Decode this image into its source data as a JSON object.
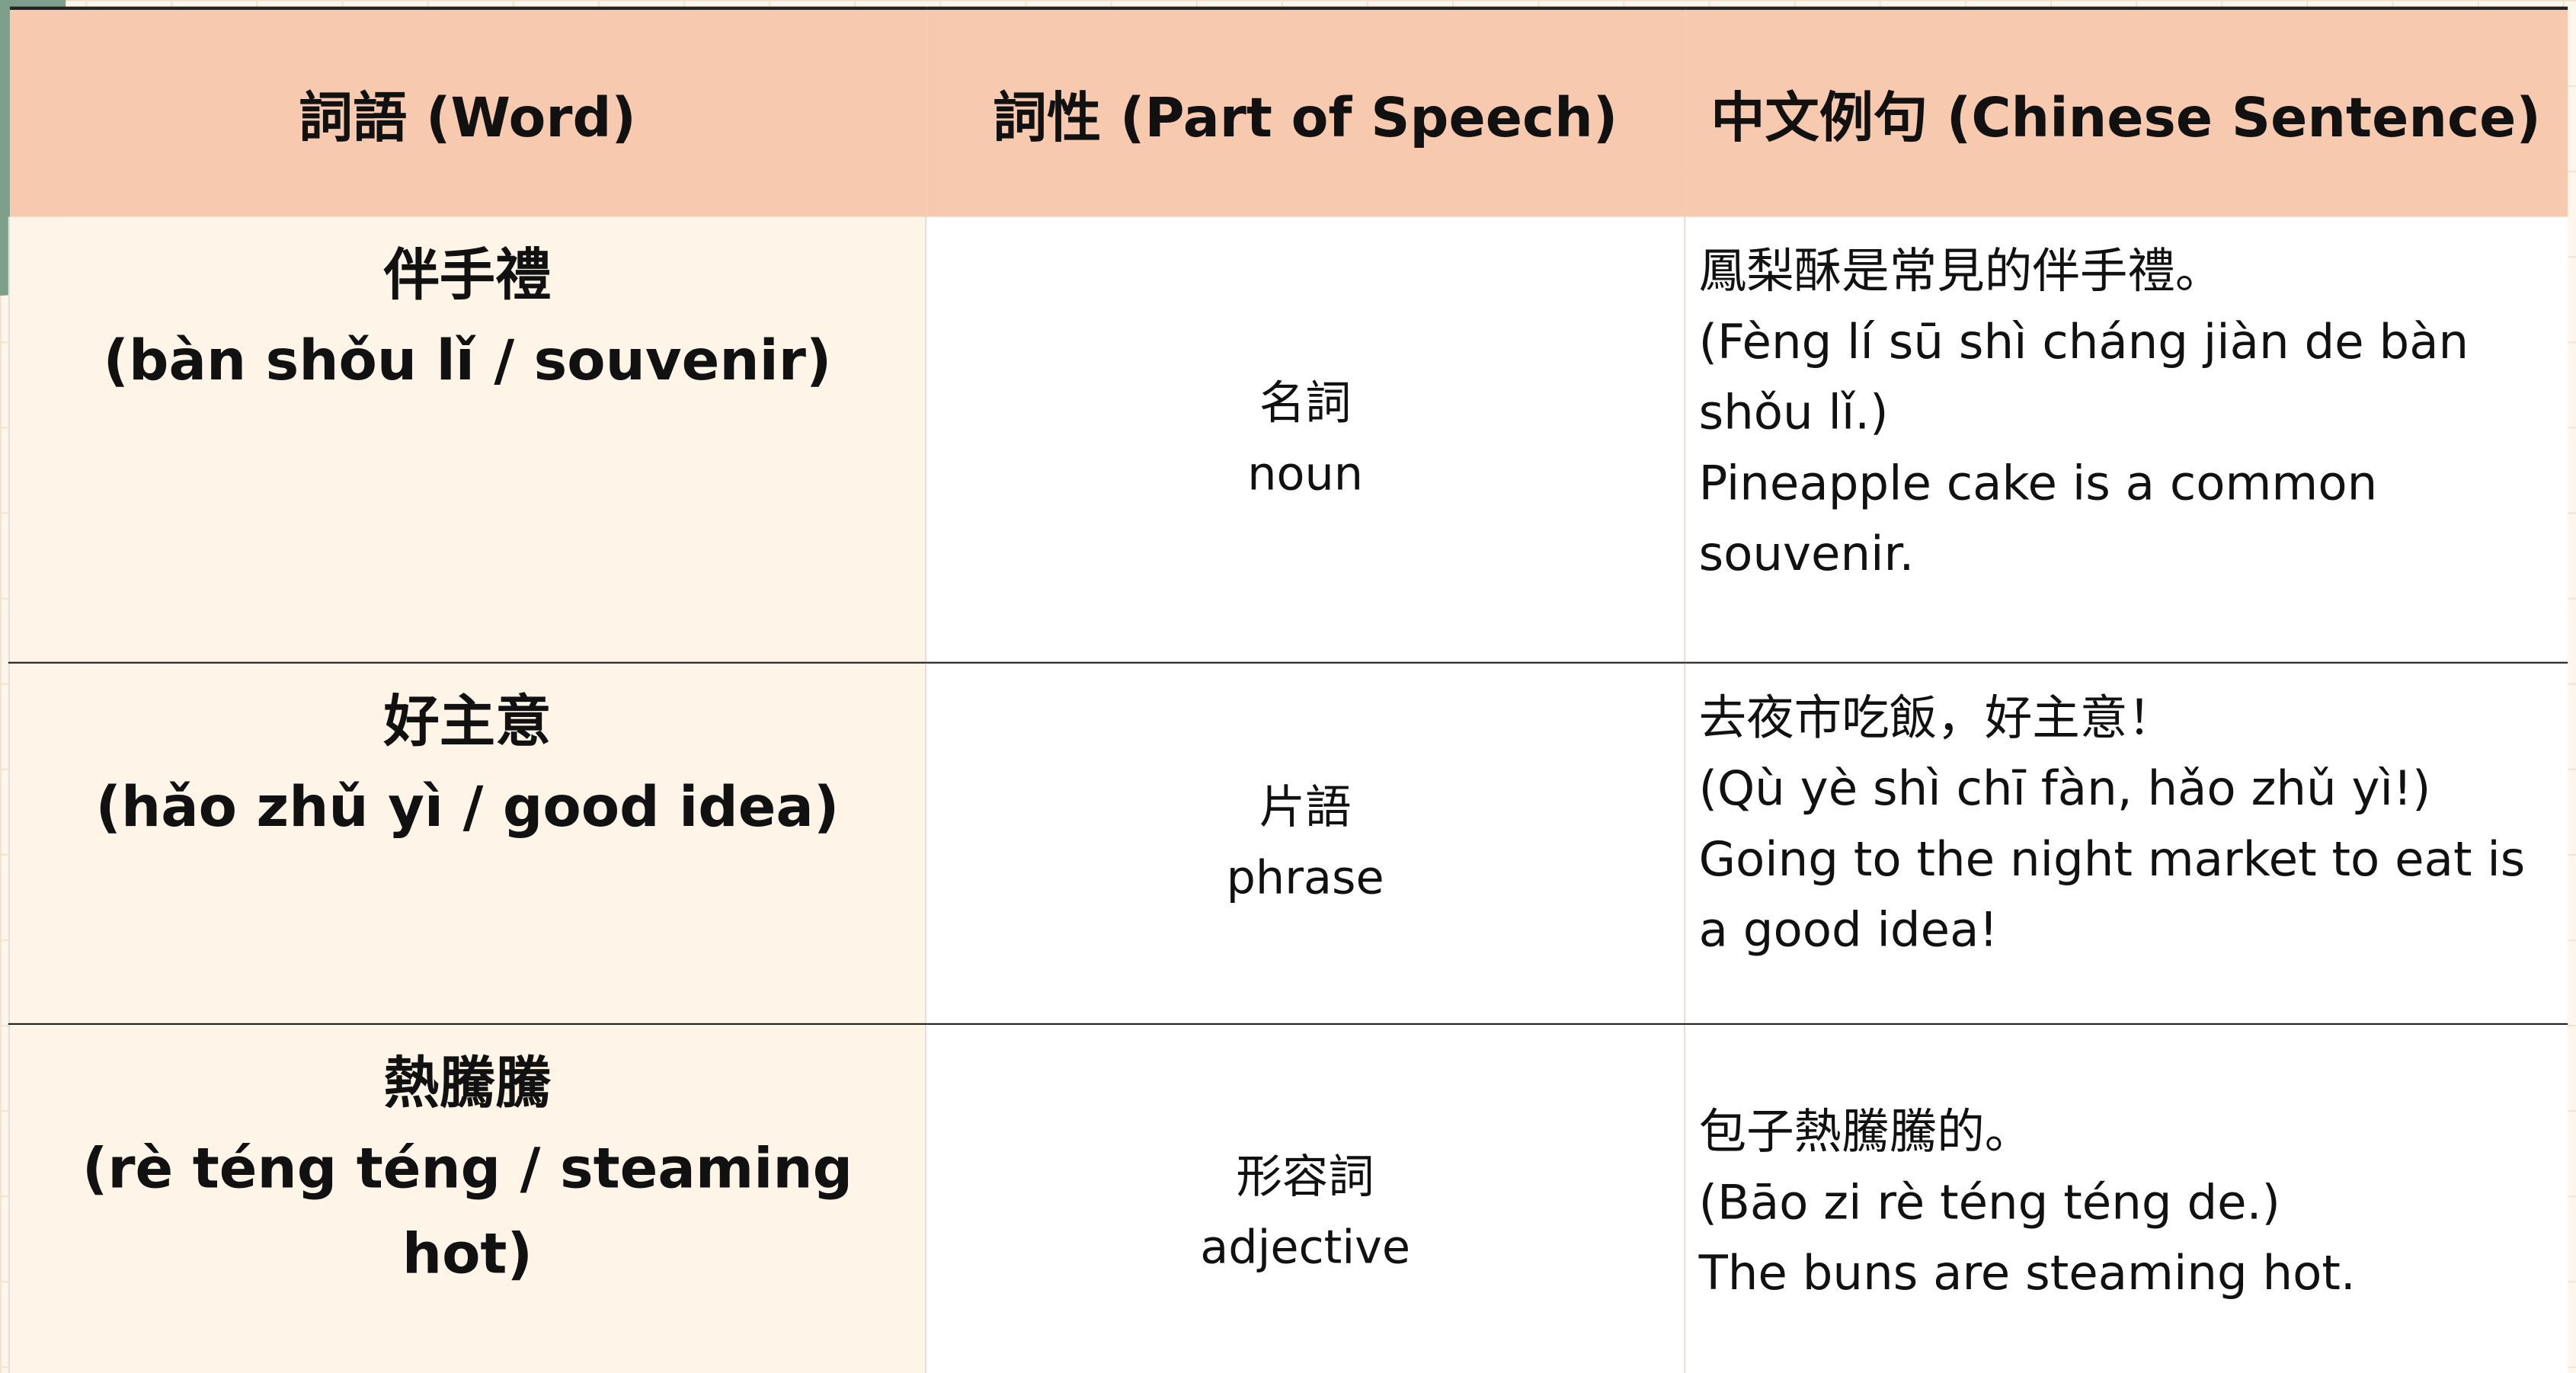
{
  "header": {
    "columns": [
      "詞語 (Word)",
      "詞性 (Part of Speech)",
      "中文例句 (Chinese Sentence)"
    ]
  },
  "rows": [
    {
      "word": "伴手禮",
      "pinyin": "(bàn shǒu lǐ / souvenir)",
      "pos_zh": "名詞",
      "pos_en": "noun",
      "sentence": [
        "鳳梨酥是常見的伴手禮。",
        "(Fèng lí sū shì cháng jiàn de bàn shǒu lǐ.)",
        "Pineapple cake is a common souvenir."
      ]
    },
    {
      "word": "好主意",
      "pinyin": "(hǎo zhǔ yì / good idea)",
      "pos_zh": "片語",
      "pos_en": "phrase",
      "sentence": [
        "去夜市吃飯，好主意！",
        "(Qù yè shì chī fàn, hǎo zhǔ yì!)",
        "Going to the night market to eat is a good idea!"
      ]
    },
    {
      "word": "熱騰騰",
      "pinyin": "(rè téng téng / steaming hot)",
      "pos_zh": "形容詞",
      "pos_en": "adjective",
      "sentence": [
        "包子熱騰騰的。",
        "(Bāo zi rè téng téng de.)",
        "The buns are steaming hot."
      ]
    }
  ]
}
